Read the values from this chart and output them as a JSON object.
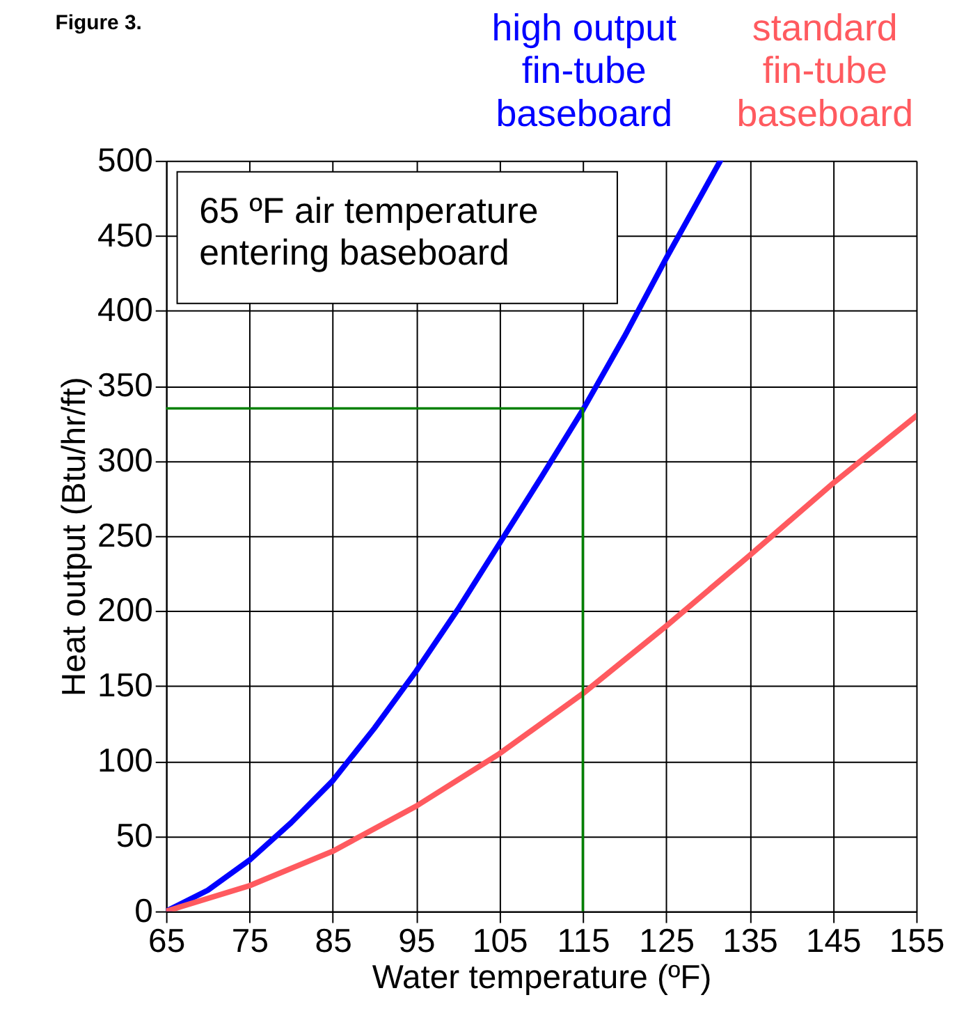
{
  "chart_data": {
    "type": "line",
    "title": "Figure 3.",
    "xlabel": "Water temperature (ºF)",
    "ylabel": "Heat output (Btu/hr/ft)",
    "xlim": [
      65,
      155
    ],
    "ylim": [
      0,
      500
    ],
    "xticks": [
      65,
      75,
      85,
      95,
      105,
      115,
      125,
      135,
      145,
      155
    ],
    "yticks": [
      0,
      50,
      100,
      150,
      200,
      250,
      300,
      350,
      400,
      450,
      500
    ],
    "grid": true,
    "marker": "none",
    "line_style": "solid",
    "annotations": [
      "65 ºF air temperature\nentering baseboard"
    ],
    "series": [
      {
        "name": "high output\nfin-tube\nbaseboard",
        "color": "#0000ff",
        "x": [
          65,
          70,
          75,
          80,
          85,
          90,
          95,
          100,
          105,
          110,
          115,
          120,
          125,
          131.5
        ],
        "values": [
          0,
          14,
          34,
          59,
          87,
          122,
          160,
          201,
          245,
          289,
          334,
          383,
          435,
          500
        ]
      },
      {
        "name": "standard\nfin-tube\nbaseboard",
        "color": "#ff5a5f",
        "x": [
          65,
          75,
          85,
          95,
          105,
          115,
          125,
          135,
          145,
          155
        ],
        "values": [
          0,
          17,
          40,
          70,
          105,
          145,
          190,
          237,
          285,
          330
        ]
      },
      {
        "color": "#008000",
        "x": [
          115,
          115,
          65
        ],
        "values": [
          0,
          335,
          335
        ]
      }
    ]
  }
}
